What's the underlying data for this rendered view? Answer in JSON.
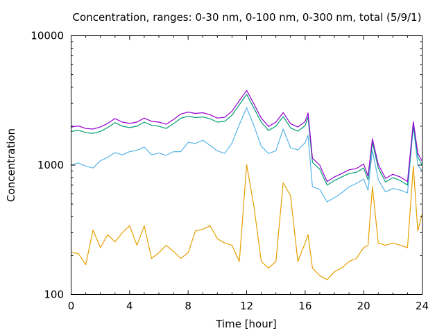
{
  "chart_data": {
    "type": "line",
    "title": "Concentration, ranges: 0-30 nm, 0-100 nm, 0-300 nm, total (5/9/1)",
    "xlabel": "Time [hour]",
    "ylabel": "Concentration",
    "xlim": [
      0,
      24
    ],
    "ylim": [
      100,
      10000
    ],
    "yscale": "log",
    "xticks": [
      0,
      4,
      8,
      12,
      16,
      20,
      24
    ],
    "xtick_labels": [
      "0",
      "4",
      "8",
      "12",
      "16",
      "20",
      "24"
    ],
    "xminor_step": 1,
    "yticks": [
      100,
      1000,
      10000
    ],
    "ytick_labels": [
      "100",
      "1000",
      "10000"
    ],
    "grid": false,
    "legend": "none",
    "x": [
      0,
      0.5,
      1,
      1.5,
      2,
      2.5,
      3,
      3.5,
      4,
      4.5,
      5,
      5.5,
      6,
      6.5,
      7,
      7.5,
      8,
      8.5,
      9,
      9.5,
      10,
      10.5,
      11,
      11.5,
      12,
      12.5,
      13,
      13.5,
      14,
      14.5,
      15,
      15.5,
      16,
      16.2,
      16.5,
      17,
      17.5,
      18,
      18.5,
      19,
      19.5,
      20,
      20.3,
      20.6,
      21,
      21.5,
      22,
      22.5,
      23,
      23.4,
      23.7,
      24
    ],
    "series": [
      {
        "name": "total",
        "color": "#9400d3",
        "values": [
          1970,
          2010,
          1920,
          1900,
          1970,
          2100,
          2290,
          2150,
          2100,
          2150,
          2310,
          2180,
          2150,
          2070,
          2250,
          2480,
          2570,
          2510,
          2540,
          2450,
          2310,
          2340,
          2610,
          3150,
          3780,
          2970,
          2310,
          1990,
          2150,
          2550,
          2090,
          1970,
          2170,
          2530,
          1130,
          1000,
          745,
          810,
          860,
          920,
          940,
          1020,
          820,
          1600,
          1010,
          790,
          850,
          810,
          745,
          2170,
          1240,
          1070
        ]
      },
      {
        "name": "0-300 nm",
        "color": "#009e73",
        "values": [
          1820,
          1860,
          1780,
          1760,
          1820,
          1950,
          2130,
          2000,
          1950,
          2000,
          2150,
          2030,
          2000,
          1920,
          2090,
          2300,
          2390,
          2330,
          2360,
          2280,
          2150,
          2180,
          2430,
          2930,
          3520,
          2760,
          2150,
          1850,
          2000,
          2370,
          1940,
          1830,
          2020,
          2350,
          1050,
          930,
          700,
          760,
          810,
          860,
          880,
          950,
          770,
          1500,
          950,
          740,
          800,
          760,
          700,
          2050,
          1160,
          1000
        ]
      },
      {
        "name": "0-100 nm",
        "color": "#56b4e9",
        "values": [
          1000,
          1040,
          980,
          950,
          1080,
          1150,
          1250,
          1200,
          1270,
          1300,
          1380,
          1200,
          1240,
          1190,
          1270,
          1270,
          1500,
          1470,
          1560,
          1420,
          1290,
          1230,
          1480,
          2060,
          2780,
          2020,
          1400,
          1230,
          1290,
          1900,
          1360,
          1310,
          1490,
          1700,
          680,
          650,
          520,
          560,
          610,
          680,
          720,
          780,
          640,
          1300,
          770,
          620,
          660,
          640,
          610,
          2000,
          1000,
          900
        ]
      },
      {
        "name": "0-30 nm",
        "color": "#e69f00",
        "values": [
          212,
          207,
          170,
          315,
          230,
          290,
          255,
          300,
          340,
          240,
          340,
          190,
          210,
          240,
          215,
          190,
          210,
          310,
          320,
          340,
          270,
          250,
          240,
          180,
          1010,
          480,
          180,
          160,
          180,
          730,
          580,
          180,
          250,
          290,
          160,
          140,
          130,
          150,
          160,
          180,
          190,
          230,
          240,
          680,
          250,
          240,
          250,
          240,
          230,
          980,
          310,
          420
        ]
      }
    ]
  }
}
